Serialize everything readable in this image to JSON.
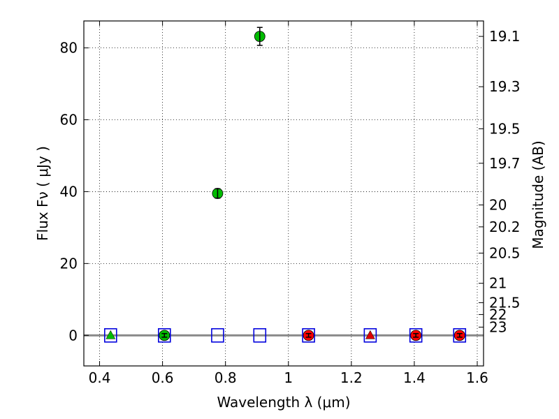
{
  "chart_data": {
    "type": "scatter",
    "title": "",
    "xlabel": "Wavelength  λ (μm)",
    "ylabel": "Flux  Fν  ( μJy )",
    "ylabel_right": "Magnitude (AB)",
    "xlim": [
      0.35,
      1.62
    ],
    "ylim": [
      -8.5,
      87.5
    ],
    "grid": true,
    "legend": "none",
    "x_ticks": [
      {
        "value": 0.4,
        "label": "0.4"
      },
      {
        "value": 0.6,
        "label": "0.6"
      },
      {
        "value": 0.8,
        "label": "0.8"
      },
      {
        "value": 1.0,
        "label": "1"
      },
      {
        "value": 1.2,
        "label": "1.2"
      },
      {
        "value": 1.4,
        "label": "1.4"
      },
      {
        "value": 1.6,
        "label": "1.6"
      }
    ],
    "y_ticks": [
      {
        "value": 0,
        "label": "0"
      },
      {
        "value": 20,
        "label": "20"
      },
      {
        "value": 40,
        "label": "40"
      },
      {
        "value": 60,
        "label": "60"
      },
      {
        "value": 80,
        "label": "80"
      }
    ],
    "magnitude_ticks": [
      {
        "flux": 83.2,
        "label": "19.1"
      },
      {
        "flux": 69.2,
        "label": "19.3"
      },
      {
        "flux": 57.5,
        "label": "19.5"
      },
      {
        "flux": 47.9,
        "label": "19.7"
      },
      {
        "flux": 36.3,
        "label": "20"
      },
      {
        "flux": 30.2,
        "label": "20.2"
      },
      {
        "flux": 22.9,
        "label": "20.5"
      },
      {
        "flux": 14.5,
        "label": "21"
      },
      {
        "flux": 9.1,
        "label": "21.5"
      },
      {
        "flux": 5.8,
        "label": "22"
      },
      {
        "flux": 2.3,
        "label": "23"
      }
    ],
    "series": [
      {
        "marker": "circle",
        "color": "#00bb00",
        "points": [
          {
            "x": 0.606,
            "y": 0.0,
            "err": 0.5
          },
          {
            "x": 0.775,
            "y": 39.5,
            "err": 1.3
          },
          {
            "x": 0.909,
            "y": 83.2,
            "err": 2.5
          }
        ]
      },
      {
        "marker": "circle",
        "color": "#ff0000",
        "points": [
          {
            "x": 1.064,
            "y": 0.0,
            "err": 0.5
          },
          {
            "x": 1.405,
            "y": 0.0,
            "err": 0.5
          },
          {
            "x": 1.544,
            "y": 0.0,
            "err": 0.5
          }
        ]
      },
      {
        "marker": "triangle",
        "color": "#00bb00",
        "points": [
          {
            "x": 0.435,
            "y": 0.0
          }
        ]
      },
      {
        "marker": "triangle",
        "color": "#dd0000",
        "points": [
          {
            "x": 1.26,
            "y": 0.0
          }
        ]
      },
      {
        "marker": "square-open",
        "color": "#0000dd",
        "points": [
          {
            "x": 0.435,
            "y": 0.0
          },
          {
            "x": 0.606,
            "y": 0.0
          },
          {
            "x": 0.775,
            "y": 0.0
          },
          {
            "x": 0.909,
            "y": 0.0
          },
          {
            "x": 1.064,
            "y": 0.0
          },
          {
            "x": 1.26,
            "y": 0.0
          },
          {
            "x": 1.405,
            "y": 0.0
          },
          {
            "x": 1.544,
            "y": 0.0
          }
        ]
      }
    ],
    "zero_line": {
      "y": 0,
      "color": "#888888"
    }
  }
}
